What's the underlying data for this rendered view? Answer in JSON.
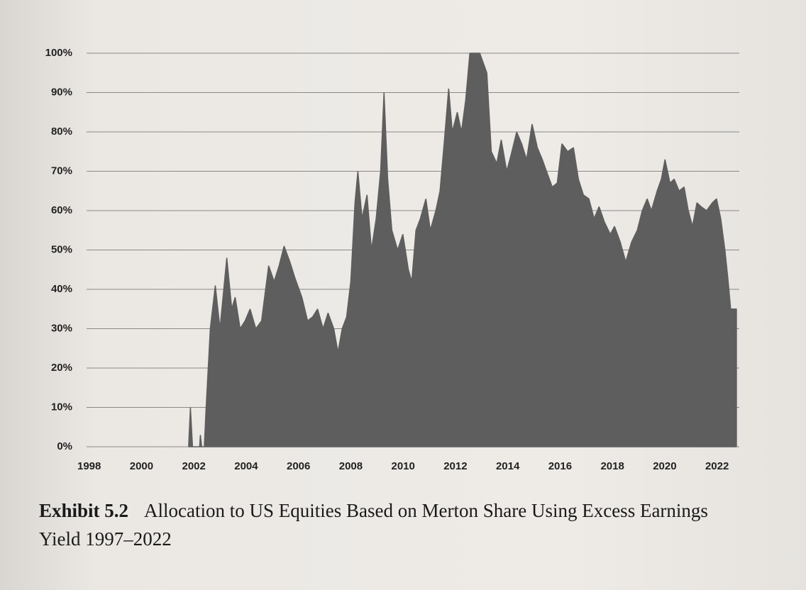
{
  "chart_data": {
    "type": "area",
    "caption_label": "Exhibit 5.2",
    "caption": "Allocation to US Equities Based on Merton Share Using Excess Earnings Yield 1997–2022",
    "color": "#5e5e5e",
    "xlim": [
      1997.9,
      2022.85
    ],
    "xticks": [
      1998,
      2000,
      2002,
      2004,
      2006,
      2008,
      2010,
      2012,
      2014,
      2016,
      2018,
      2020,
      2022
    ],
    "ylim": [
      0,
      100
    ],
    "yticks": [
      {
        "value": 0,
        "label": "0%"
      },
      {
        "value": 10,
        "label": "10%"
      },
      {
        "value": 20,
        "label": "20%"
      },
      {
        "value": 30,
        "label": "30%"
      },
      {
        "value": 40,
        "label": "40%"
      },
      {
        "value": 50,
        "label": "50%"
      },
      {
        "value": 60,
        "label": "60%"
      },
      {
        "value": 70,
        "label": "70%"
      },
      {
        "value": 80,
        "label": "80%"
      },
      {
        "value": 90,
        "label": "90%"
      },
      {
        "value": 100,
        "label": "100%"
      }
    ],
    "grid": true,
    "x": [
      2001.8,
      2001.87,
      2001.95,
      2002.22,
      2002.25,
      2002.3,
      2002.4,
      2002.47,
      2002.63,
      2002.82,
      2003.0,
      2003.26,
      2003.45,
      2003.58,
      2003.77,
      2003.96,
      2004.15,
      2004.37,
      2004.59,
      2004.86,
      2005.07,
      2005.26,
      2005.45,
      2005.67,
      2005.86,
      2006.13,
      2006.35,
      2006.54,
      2006.73,
      2006.94,
      2007.13,
      2007.35,
      2007.51,
      2007.67,
      2007.84,
      2008.0,
      2008.16,
      2008.27,
      2008.43,
      2008.62,
      2008.79,
      2008.97,
      2009.14,
      2009.27,
      2009.41,
      2009.57,
      2009.79,
      2009.99,
      2010.2,
      2010.33,
      2010.49,
      2010.66,
      2010.87,
      2011.04,
      2011.25,
      2011.41,
      2011.58,
      2011.74,
      2011.88,
      2012.07,
      2012.23,
      2012.39,
      2012.55,
      2012.72,
      2012.93,
      2013.2,
      2013.37,
      2013.58,
      2013.75,
      2013.96,
      2014.12,
      2014.34,
      2014.53,
      2014.72,
      2014.93,
      2015.13,
      2015.32,
      2015.48,
      2015.7,
      2015.89,
      2016.07,
      2016.29,
      2016.51,
      2016.7,
      2016.89,
      2017.1,
      2017.3,
      2017.49,
      2017.7,
      2017.92,
      2018.08,
      2018.3,
      2018.51,
      2018.73,
      2018.95,
      2019.14,
      2019.33,
      2019.49,
      2019.71,
      2019.87,
      2020.01,
      2020.2,
      2020.36,
      2020.55,
      2020.74,
      2020.9,
      2021.06,
      2021.23,
      2021.39,
      2021.6,
      2021.82,
      2021.98,
      2022.14,
      2022.3,
      2022.41,
      2022.52,
      2022.74
    ],
    "values": [
      0,
      10,
      0,
      0,
      3,
      0,
      0,
      10,
      30,
      41,
      30,
      48,
      35,
      38,
      30,
      32,
      35,
      30,
      32,
      46,
      42,
      46,
      51,
      47,
      43,
      38,
      32,
      33,
      35,
      30,
      34,
      30,
      24,
      30,
      33,
      42,
      62,
      70,
      58,
      64,
      50,
      58,
      70,
      90,
      68,
      55,
      50,
      54,
      45,
      42,
      55,
      58,
      63,
      55,
      60,
      65,
      78,
      91,
      80,
      85,
      80,
      88,
      100,
      100,
      100,
      95,
      75,
      72,
      78,
      70,
      74,
      80,
      77,
      73,
      82,
      76,
      73,
      70,
      66,
      67,
      77,
      75,
      76,
      68,
      64,
      63,
      58,
      61,
      57,
      54,
      56,
      52,
      47,
      52,
      55,
      60,
      63,
      60,
      65,
      68,
      73,
      67,
      68,
      65,
      66,
      60,
      56,
      62,
      61,
      60,
      62,
      63,
      58,
      50,
      43,
      35,
      35
    ]
  }
}
